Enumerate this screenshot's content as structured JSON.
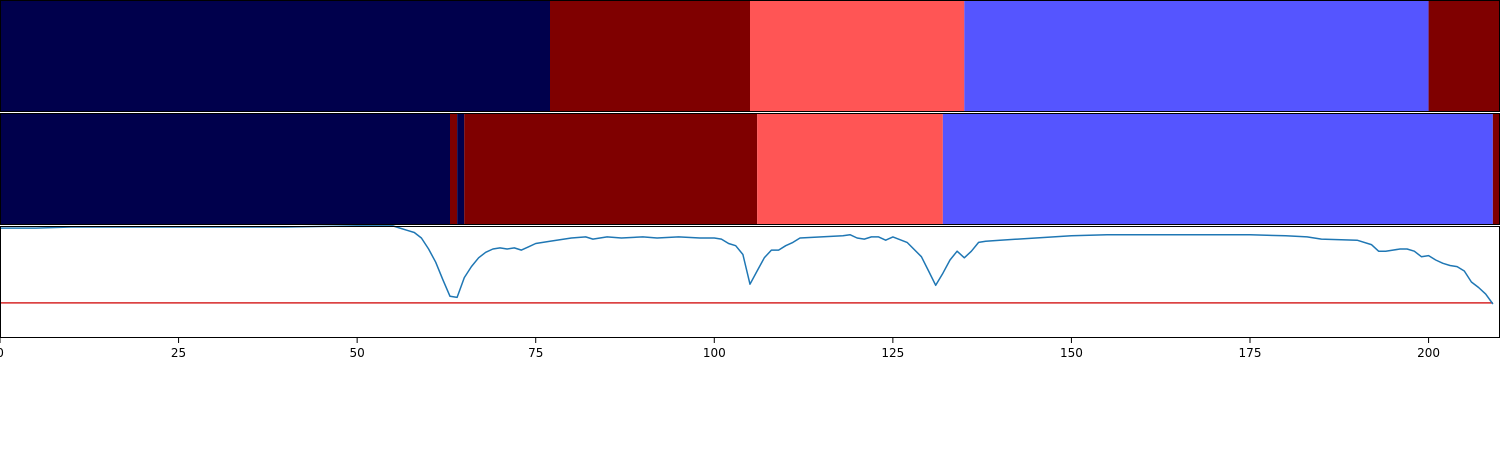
{
  "chart_data": [
    {
      "type": "heatmap",
      "panel": "top-strip",
      "colors": {
        "dark_navy": "#00004c",
        "dark_red": "#7f0000",
        "salmon": "#ff5555",
        "blue": "#5555ff"
      },
      "segments": [
        {
          "start": 0,
          "end": 77,
          "color": "#00004c"
        },
        {
          "start": 77,
          "end": 105,
          "color": "#7f0000"
        },
        {
          "start": 105,
          "end": 135,
          "color": "#ff5555"
        },
        {
          "start": 135,
          "end": 200,
          "color": "#5555ff"
        },
        {
          "start": 200,
          "end": 210,
          "color": "#7f0000"
        }
      ]
    },
    {
      "type": "heatmap",
      "panel": "middle-strip",
      "segments": [
        {
          "start": 0,
          "end": 63,
          "color": "#00004c"
        },
        {
          "start": 63,
          "end": 64,
          "color": "#7f0000"
        },
        {
          "start": 64,
          "end": 65,
          "color": "#00004c"
        },
        {
          "start": 65,
          "end": 106,
          "color": "#7f0000"
        },
        {
          "start": 106,
          "end": 132,
          "color": "#ff5555"
        },
        {
          "start": 132,
          "end": 209,
          "color": "#5555ff"
        },
        {
          "start": 209,
          "end": 210,
          "color": "#7f0000"
        }
      ]
    },
    {
      "type": "line",
      "panel": "bottom-plot",
      "xlim": [
        0,
        210
      ],
      "ylim": [
        0,
        1
      ],
      "xticks": [
        0,
        25,
        50,
        75,
        100,
        125,
        150,
        175,
        200
      ],
      "xtick_labels": [
        "0",
        "25",
        "50",
        "75",
        "100",
        "125",
        "150",
        "175",
        "200"
      ],
      "grid": false,
      "series_color": "#1f77b4",
      "threshold": {
        "y": 0.31,
        "color": "#d62728"
      },
      "series": [
        {
          "points": [
            [
              0,
              0.99
            ],
            [
              5,
              0.99
            ],
            [
              10,
              1.0
            ],
            [
              20,
              1.0
            ],
            [
              30,
              1.0
            ],
            [
              40,
              1.0
            ],
            [
              50,
              1.01
            ],
            [
              55,
              1.01
            ],
            [
              56,
              0.99
            ],
            [
              57,
              0.97
            ],
            [
              58,
              0.95
            ],
            [
              59,
              0.9
            ],
            [
              60,
              0.8
            ],
            [
              61,
              0.68
            ],
            [
              62,
              0.52
            ],
            [
              63,
              0.37
            ],
            [
              64,
              0.36
            ],
            [
              65,
              0.54
            ],
            [
              66,
              0.64
            ],
            [
              67,
              0.72
            ],
            [
              68,
              0.77
            ],
            [
              69,
              0.8
            ],
            [
              70,
              0.81
            ],
            [
              71,
              0.8
            ],
            [
              72,
              0.81
            ],
            [
              73,
              0.79
            ],
            [
              74,
              0.82
            ],
            [
              75,
              0.85
            ],
            [
              77,
              0.87
            ],
            [
              80,
              0.9
            ],
            [
              82,
              0.91
            ],
            [
              83,
              0.89
            ],
            [
              85,
              0.91
            ],
            [
              87,
              0.9
            ],
            [
              90,
              0.91
            ],
            [
              92,
              0.9
            ],
            [
              95,
              0.91
            ],
            [
              98,
              0.9
            ],
            [
              100,
              0.9
            ],
            [
              101,
              0.89
            ],
            [
              102,
              0.85
            ],
            [
              103,
              0.83
            ],
            [
              104,
              0.75
            ],
            [
              105,
              0.48
            ],
            [
              106,
              0.6
            ],
            [
              107,
              0.72
            ],
            [
              108,
              0.79
            ],
            [
              109,
              0.79
            ],
            [
              110,
              0.83
            ],
            [
              111,
              0.86
            ],
            [
              112,
              0.9
            ],
            [
              115,
              0.91
            ],
            [
              118,
              0.92
            ],
            [
              119,
              0.93
            ],
            [
              120,
              0.9
            ],
            [
              121,
              0.89
            ],
            [
              122,
              0.91
            ],
            [
              123,
              0.91
            ],
            [
              124,
              0.88
            ],
            [
              125,
              0.91
            ],
            [
              127,
              0.86
            ],
            [
              129,
              0.73
            ],
            [
              130,
              0.6
            ],
            [
              131,
              0.47
            ],
            [
              132,
              0.58
            ],
            [
              133,
              0.7
            ],
            [
              134,
              0.78
            ],
            [
              135,
              0.72
            ],
            [
              136,
              0.78
            ],
            [
              137,
              0.86
            ],
            [
              138,
              0.87
            ],
            [
              140,
              0.88
            ],
            [
              145,
              0.9
            ],
            [
              150,
              0.92
            ],
            [
              155,
              0.93
            ],
            [
              160,
              0.93
            ],
            [
              165,
              0.93
            ],
            [
              170,
              0.93
            ],
            [
              175,
              0.93
            ],
            [
              180,
              0.92
            ],
            [
              183,
              0.91
            ],
            [
              185,
              0.89
            ],
            [
              190,
              0.88
            ],
            [
              192,
              0.84
            ],
            [
              193,
              0.78
            ],
            [
              194,
              0.78
            ],
            [
              195,
              0.79
            ],
            [
              196,
              0.8
            ],
            [
              197,
              0.8
            ],
            [
              198,
              0.78
            ],
            [
              199,
              0.73
            ],
            [
              200,
              0.74
            ],
            [
              201,
              0.7
            ],
            [
              202,
              0.67
            ],
            [
              203,
              0.65
            ],
            [
              204,
              0.64
            ],
            [
              205,
              0.6
            ],
            [
              206,
              0.5
            ],
            [
              207,
              0.45
            ],
            [
              208,
              0.39
            ],
            [
              209,
              0.3
            ]
          ]
        }
      ]
    }
  ]
}
